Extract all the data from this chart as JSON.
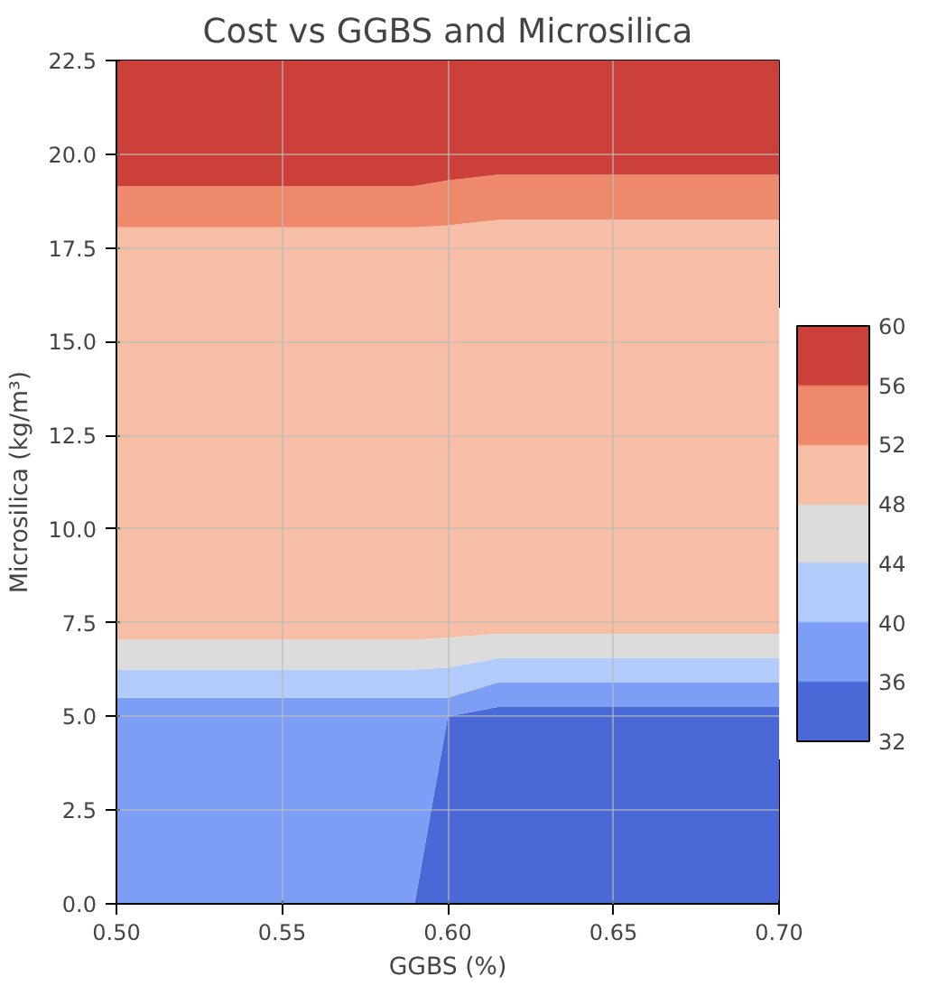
{
  "chart_data": {
    "type": "area",
    "stacked": true,
    "title": "Cost vs GGBS and Microsilica",
    "xlabel": "GGBS (%)",
    "ylabel": "Microsilica (kg/m³)",
    "x": [
      0.5,
      0.59,
      0.6,
      0.615,
      0.7
    ],
    "series": [
      {
        "color": "#4b69d6",
        "values": [
          0,
          0,
          5.0,
          5.25,
          5.25
        ]
      },
      {
        "color": "#7d9ef5",
        "values": [
          5.5,
          5.5,
          0.5,
          0.65,
          0.65
        ]
      },
      {
        "color": "#b2cbfb",
        "values": [
          0.75,
          0.75,
          0.8,
          0.65,
          0.65
        ]
      },
      {
        "color": "#dcdcdc",
        "values": [
          0.8,
          0.8,
          0.8,
          0.65,
          0.65
        ]
      },
      {
        "color": "#f5bea5",
        "values": [
          11,
          11,
          11,
          11.05,
          11.05
        ]
      },
      {
        "color": "#ee8a6b",
        "values": [
          1.1,
          1.1,
          1.2,
          1.2,
          1.2
        ]
      },
      {
        "color": "#cc403a",
        "values": [
          3.35,
          3.35,
          3.2,
          3.05,
          3.05
        ]
      }
    ],
    "clim": [
      32,
      60
    ],
    "cticks": [
      32,
      36,
      40,
      44,
      48,
      52,
      56,
      60
    ],
    "xlim": [
      0.5,
      0.7
    ],
    "xticks": [
      {
        "value": 0.5,
        "label": "0.50"
      },
      0.55,
      {
        "value": 0.6,
        "label": "0.60"
      },
      0.65,
      {
        "value": 0.7,
        "label": "0.70"
      }
    ],
    "ylim": [
      0,
      22.5
    ],
    "yticks": [
      {
        "value": 0,
        "label": "0.0"
      },
      2.5,
      {
        "value": 5,
        "label": "5.0"
      },
      7.5,
      {
        "value": 10,
        "label": "10.0"
      },
      12.5,
      {
        "value": 15,
        "label": "15.0"
      },
      17.5,
      {
        "value": 20,
        "label": "20.0"
      },
      22.5
    ],
    "grid": true
  }
}
